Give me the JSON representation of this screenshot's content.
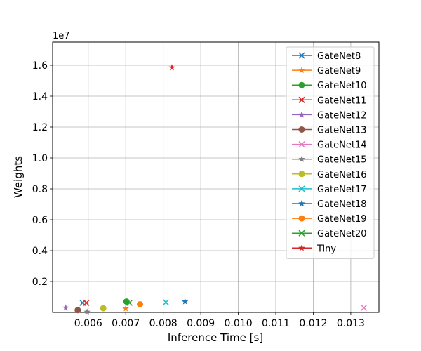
{
  "chart_data": {
    "type": "scatter",
    "title": "",
    "xlabel": "Inference Time [s]",
    "ylabel": "Weights",
    "y_offset_text": "1e7",
    "xlim": [
      0.00505,
      0.01375
    ],
    "ylim": [
      0,
      1.75
    ],
    "y_scale_factor": 10000000,
    "grid": true,
    "legend_position": "upper-right",
    "x_ticks": [
      {
        "value": 0.006,
        "label": "0.006"
      },
      {
        "value": 0.007,
        "label": "0.007"
      },
      {
        "value": 0.008,
        "label": "0.008"
      },
      {
        "value": 0.009,
        "label": "0.009"
      },
      {
        "value": 0.01,
        "label": "0.010"
      },
      {
        "value": 0.011,
        "label": "0.011"
      },
      {
        "value": 0.012,
        "label": "0.012"
      },
      {
        "value": 0.013,
        "label": "0.013"
      }
    ],
    "y_ticks": [
      {
        "value": 0.2,
        "label": "0.2"
      },
      {
        "value": 0.4,
        "label": "0.4"
      },
      {
        "value": 0.6,
        "label": "0.6"
      },
      {
        "value": 0.8,
        "label": "0.8"
      },
      {
        "value": 1.0,
        "label": "1.0"
      },
      {
        "value": 1.2,
        "label": "1.2"
      },
      {
        "value": 1.4,
        "label": "1.4"
      },
      {
        "value": 1.6,
        "label": "1.6"
      }
    ],
    "series": [
      {
        "name": "GateNet8",
        "color": "#1f77b4",
        "marker": "x",
        "x": 0.00585,
        "y": 0.062
      },
      {
        "name": "GateNet9",
        "color": "#ff7f0e",
        "marker": "star",
        "x": 0.007,
        "y": 0.025
      },
      {
        "name": "GateNet10",
        "color": "#2ca02c",
        "marker": "circle",
        "x": 0.00702,
        "y": 0.07
      },
      {
        "name": "GateNet11",
        "color": "#d62728",
        "marker": "x",
        "x": 0.00595,
        "y": 0.062
      },
      {
        "name": "GateNet12",
        "color": "#9467bd",
        "marker": "star",
        "x": 0.0054,
        "y": 0.03
      },
      {
        "name": "GateNet13",
        "color": "#8c564b",
        "marker": "circle",
        "x": 0.00572,
        "y": 0.015
      },
      {
        "name": "GateNet14",
        "color": "#e377c2",
        "marker": "x",
        "x": 0.01335,
        "y": 0.03
      },
      {
        "name": "GateNet15",
        "color": "#7f7f7f",
        "marker": "star",
        "x": 0.00597,
        "y": 0.003
      },
      {
        "name": "GateNet16",
        "color": "#bcbd22",
        "marker": "circle",
        "x": 0.0064,
        "y": 0.027
      },
      {
        "name": "GateNet17",
        "color": "#17becf",
        "marker": "x",
        "x": 0.00807,
        "y": 0.065
      },
      {
        "name": "GateNet18",
        "color": "#1f77b4",
        "marker": "star",
        "x": 0.00858,
        "y": 0.07
      },
      {
        "name": "GateNet19",
        "color": "#ff7f0e",
        "marker": "circle",
        "x": 0.00738,
        "y": 0.052
      },
      {
        "name": "GateNet20",
        "color": "#2ca02c",
        "marker": "x",
        "x": 0.0071,
        "y": 0.062
      },
      {
        "name": "Tiny",
        "color": "#d62728",
        "marker": "star",
        "x": 0.00823,
        "y": 1.585
      }
    ]
  }
}
